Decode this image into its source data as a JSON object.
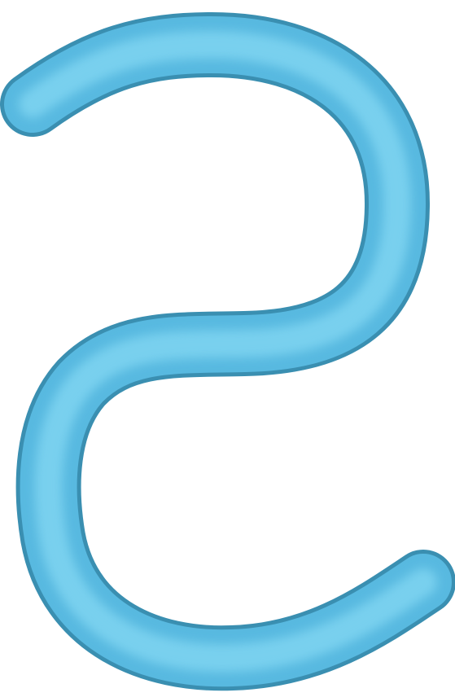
{
  "image": {
    "subject": "S-shaped tube",
    "background": "#ffffff",
    "colors": {
      "outline": "#3a8fb1",
      "body": "#58b9e0",
      "highlight": "#7dd3f0"
    }
  }
}
